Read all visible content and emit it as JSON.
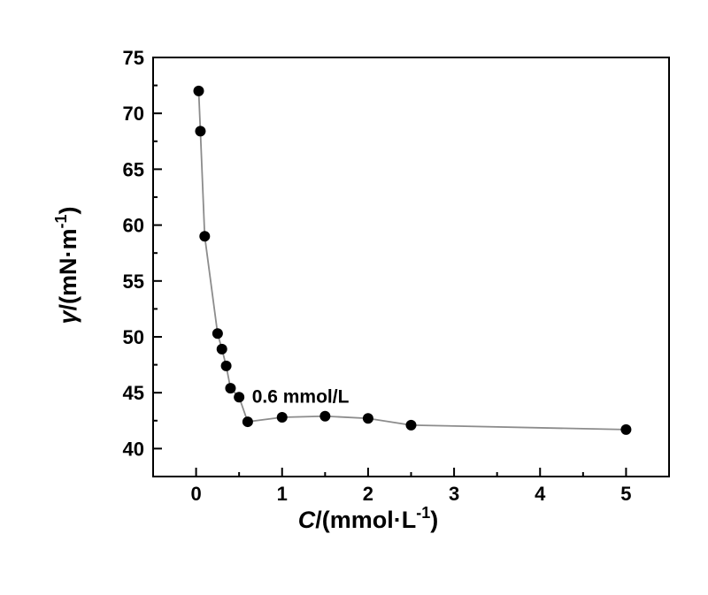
{
  "page": {
    "background": "#ffffff"
  },
  "chart_data": {
    "type": "scatter",
    "title": "",
    "xlabel": "C/(mmol·L-1)",
    "ylabel": "γ/(mN·m-1)",
    "xlabel_parts": [
      {
        "text": "C",
        "italic": true
      },
      {
        "text": "/(mmol·L"
      },
      {
        "text": "-1",
        "sup": true
      },
      {
        "text": ")"
      }
    ],
    "ylabel_parts": [
      {
        "text": "γ",
        "italic": true
      },
      {
        "text": "/(mN·m"
      },
      {
        "text": "-1",
        "sup": true
      },
      {
        "text": ")"
      }
    ],
    "series": [
      {
        "name": "surface-tension-vs-concentration",
        "x": [
          0.03,
          0.05,
          0.1,
          0.25,
          0.3,
          0.35,
          0.4,
          0.5,
          0.6,
          1.0,
          1.5,
          2.0,
          2.5,
          5.0
        ],
        "y": [
          72.0,
          68.4,
          59.0,
          50.3,
          48.9,
          47.4,
          45.4,
          44.6,
          42.4,
          42.8,
          42.9,
          42.7,
          42.1,
          41.7
        ]
      }
    ],
    "xlim": [
      -0.5,
      5.5
    ],
    "ylim": [
      37.5,
      75
    ],
    "xticks": [
      0,
      1,
      2,
      3,
      4,
      5
    ],
    "yticks": [
      40,
      45,
      50,
      55,
      60,
      65,
      70,
      75
    ],
    "x_minor_step": 0.5,
    "y_minor_step": 2.5,
    "grid": false,
    "legend_position": "none",
    "annotation": {
      "text": "0.6 mmol/L",
      "x": 0.65,
      "y": 44.1
    },
    "colors": {
      "line": "#8c8c8c",
      "marker": "#000000",
      "axis": "#000000",
      "text": "#000000"
    },
    "marker_radius": 6
  }
}
